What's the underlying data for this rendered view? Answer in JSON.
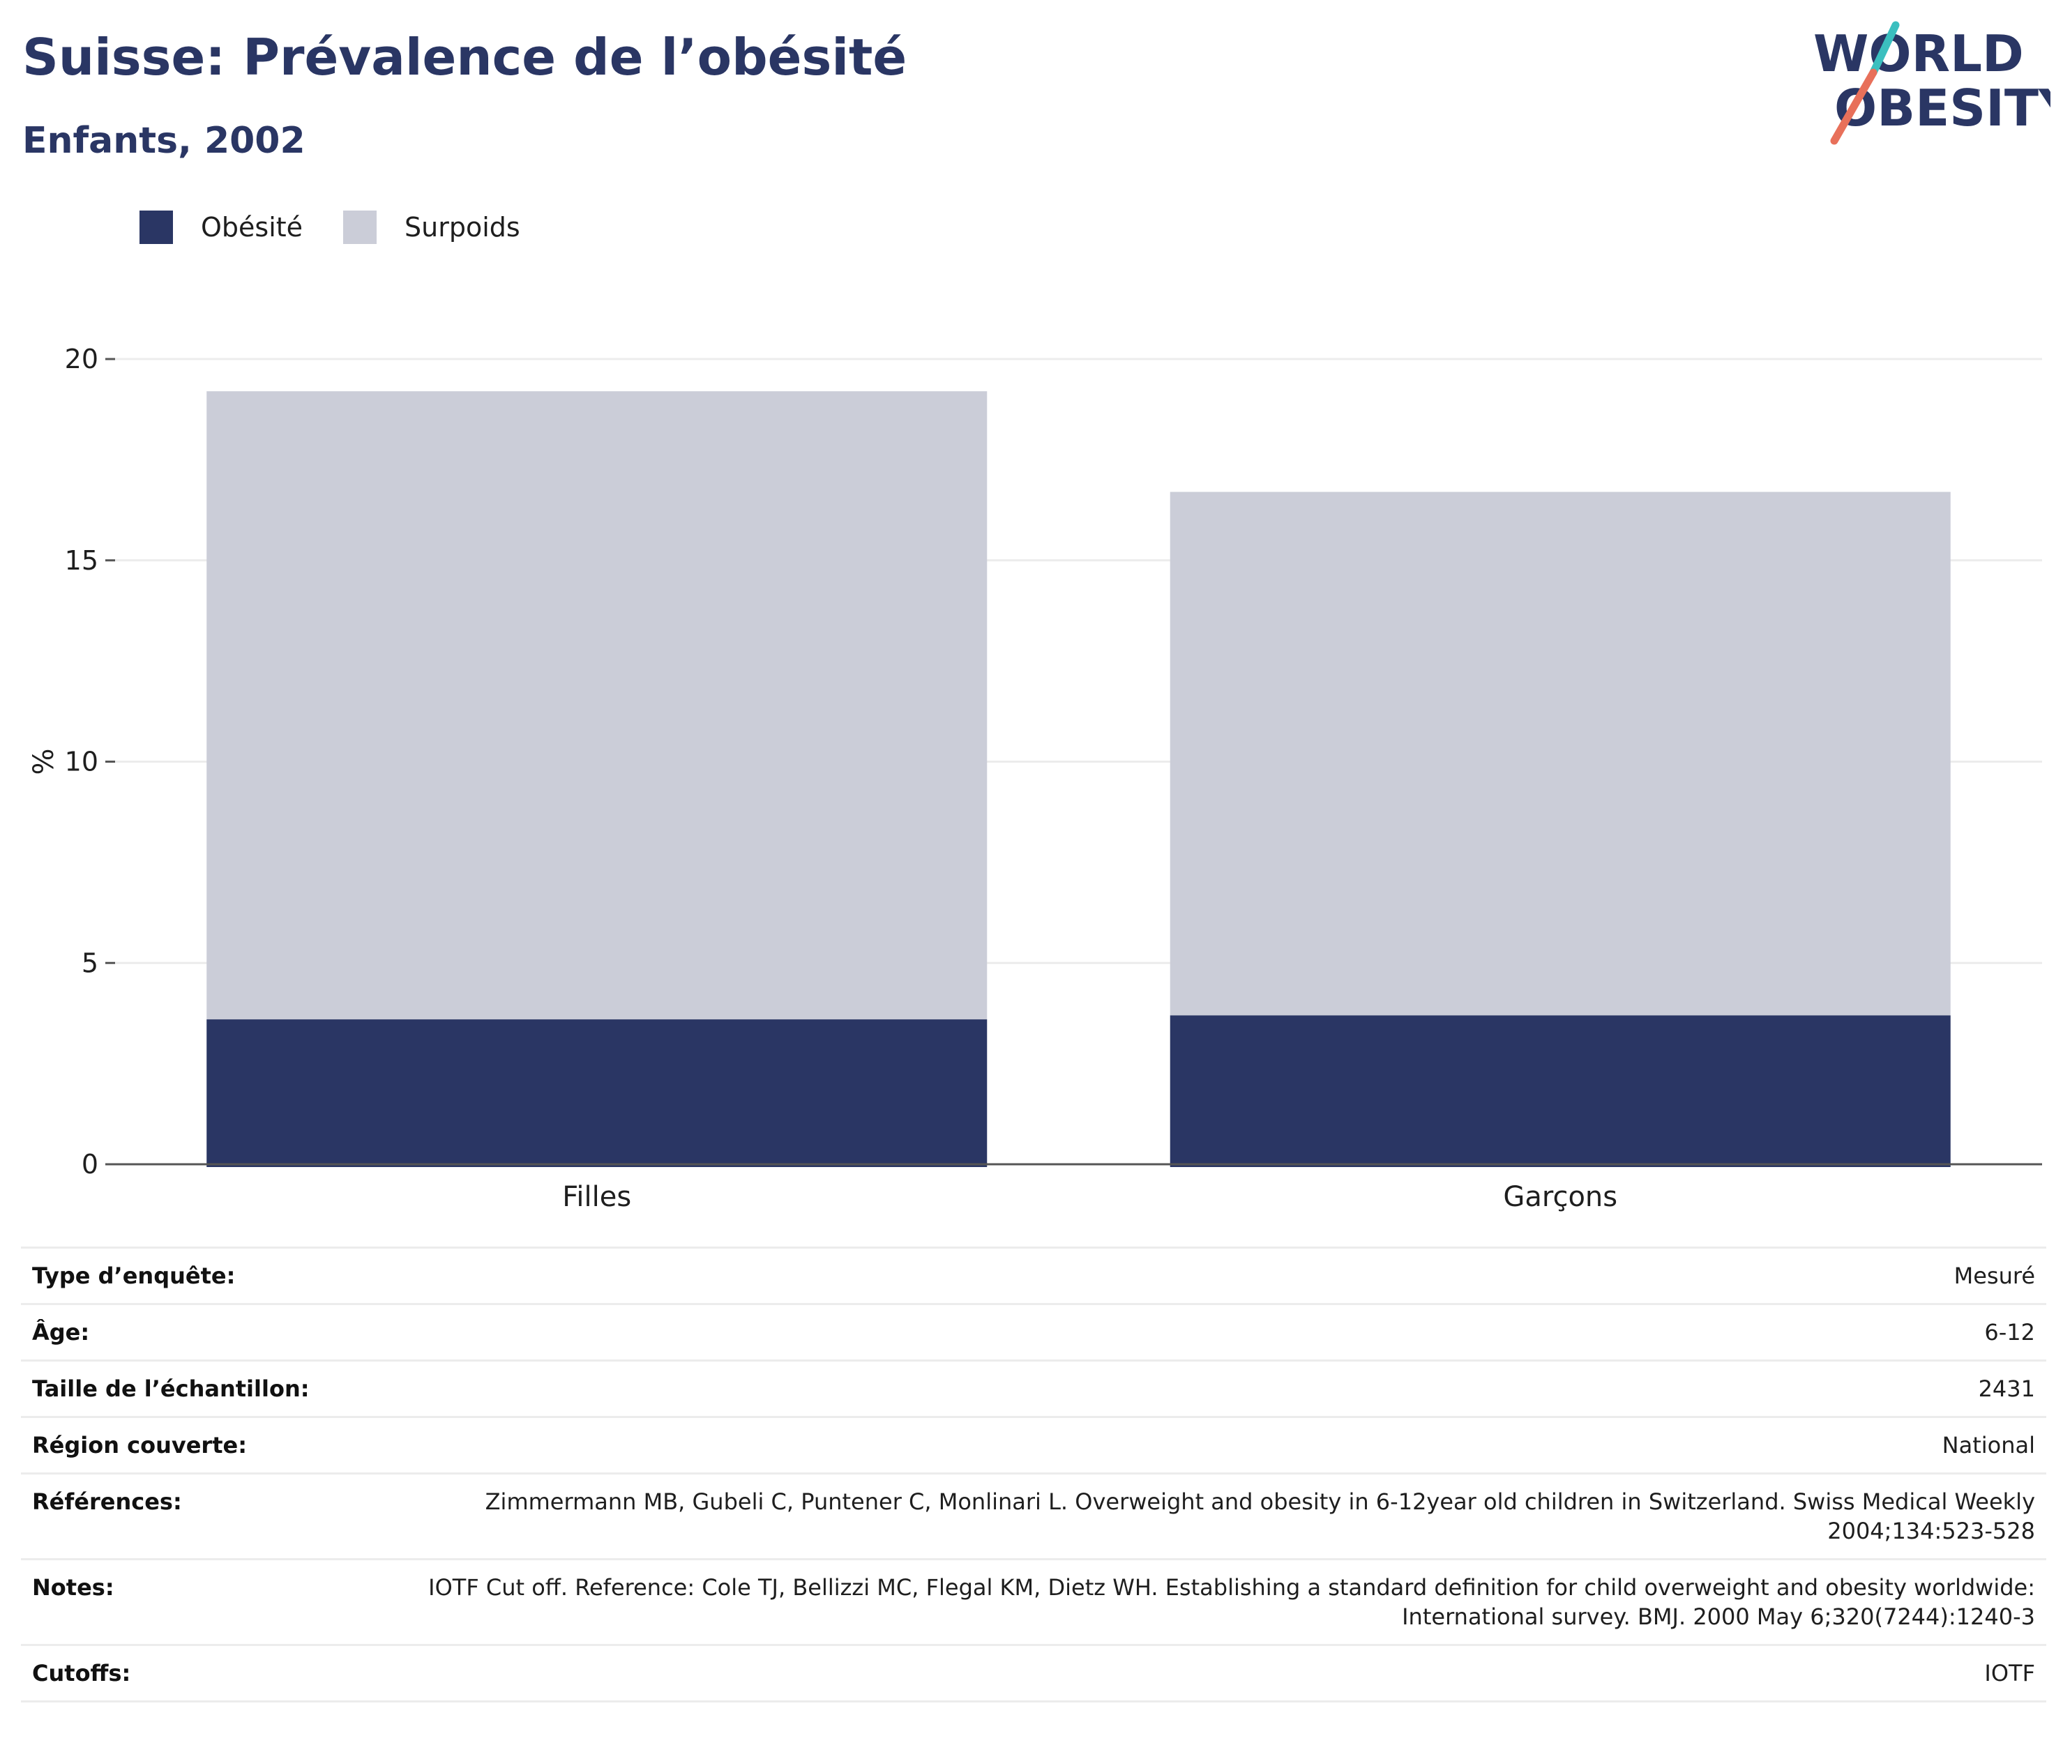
{
  "header": {
    "title": "Suisse: Prévalence de l’obésité",
    "subtitle": "Enfants, 2002"
  },
  "logo": {
    "line1": "WORLD",
    "line2": "OBESITY",
    "colors": {
      "text": "#2a3664",
      "slash_top": "#3bbfbf",
      "slash_bottom": "#e8705a"
    }
  },
  "colors": {
    "obesity": "#2a3664",
    "overweight": "#cbcdd8",
    "grid": "#ececec",
    "axis": "#555555",
    "text": "#1e1e1e"
  },
  "chart_data": {
    "type": "bar",
    "stacked": true,
    "categories": [
      "Filles",
      "Garçons"
    ],
    "series": [
      {
        "name": "Obésité",
        "values": [
          3.6,
          3.7
        ]
      },
      {
        "name": "Surpoids",
        "values": [
          15.6,
          13.0
        ]
      }
    ],
    "ylabel": "%",
    "ylim": [
      0,
      20
    ],
    "yticks": [
      0,
      5,
      10,
      15,
      20
    ],
    "grid": true,
    "legend": "top-left"
  },
  "meta": [
    {
      "key": "Type d’enquête:",
      "value": "Mesuré"
    },
    {
      "key": "Âge:",
      "value": "6-12"
    },
    {
      "key": "Taille de l’échantillon:",
      "value": "2431"
    },
    {
      "key": "Région couverte:",
      "value": "National"
    },
    {
      "key": "Références:",
      "value": "Zimmermann MB, Gubeli C, Puntener C, Monlinari L. Overweight and obesity in 6-12year old children in Switzerland. Swiss Medical Weekly 2004;134:523-528"
    },
    {
      "key": "Notes:",
      "value": "IOTF Cut off. Reference: Cole TJ, Bellizzi MC, Flegal KM, Dietz WH. Establishing a standard definition for child overweight and obesity worldwide: International survey. BMJ. 2000 May 6;320(7244):1240-3"
    },
    {
      "key": "Cutoffs:",
      "value": "IOTF"
    }
  ]
}
